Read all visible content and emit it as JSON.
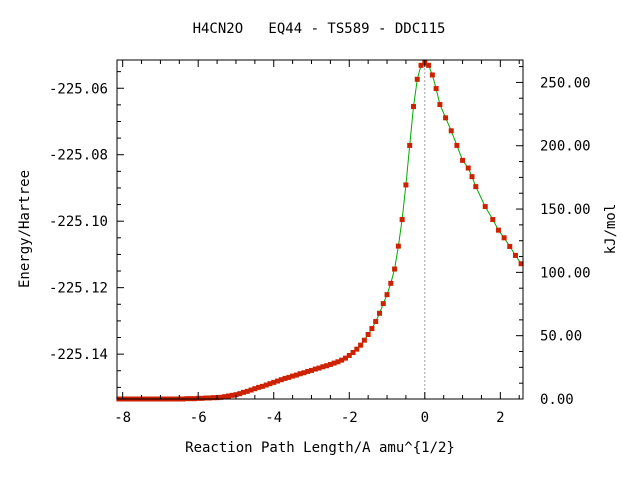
{
  "colors": {
    "line": "#00aa00",
    "marker": "#cc2200",
    "ts_line": "#a0a0a0",
    "axis": "#000000"
  },
  "chart_data": {
    "type": "line",
    "title": "H4CN2O   EQ44 - TS589 - DDC115",
    "xlabel": "Reaction Path Length/A amu^{1/2}",
    "ylabel": "Energy/Hartree",
    "y2label": "kJ/mol",
    "xlim": [
      -8.15,
      2.6
    ],
    "ylim": [
      -225.1535,
      -225.0515
    ],
    "y2lim": [
      0,
      267.7
    ],
    "x_ticks": [
      -8,
      -6,
      -4,
      -2,
      0,
      2
    ],
    "x_tick_labels": [
      "-8",
      "-6",
      "-4",
      "-2",
      "0",
      "2"
    ],
    "y_ticks": [
      -225.06,
      -225.08,
      -225.1,
      -225.12,
      -225.14
    ],
    "y_tick_labels": [
      "-225.06",
      "-225.08",
      "-225.10",
      "-225.12",
      "-225.14"
    ],
    "y2_ticks": [
      0,
      50,
      100,
      150,
      200,
      250
    ],
    "y2_tick_labels": [
      "0.00",
      "50.00",
      "100.00",
      "150.00",
      "200.00",
      "250.00"
    ],
    "ts_marker_x": 0,
    "grid": false,
    "series": [
      {
        "points": [
          [
            -8.1,
            -225.1535
          ],
          [
            -8.0,
            -225.1535
          ],
          [
            -7.9,
            -225.1535
          ],
          [
            -7.8,
            -225.1535
          ],
          [
            -7.7,
            -225.1535
          ],
          [
            -7.6,
            -225.1535
          ],
          [
            -7.5,
            -225.1535
          ],
          [
            -7.4,
            -225.1535
          ],
          [
            -7.3,
            -225.1535
          ],
          [
            -7.2,
            -225.1535
          ],
          [
            -7.1,
            -225.1535
          ],
          [
            -7.0,
            -225.1535
          ],
          [
            -6.9,
            -225.1535
          ],
          [
            -6.8,
            -225.1535
          ],
          [
            -6.7,
            -225.1535
          ],
          [
            -6.6,
            -225.1535
          ],
          [
            -6.5,
            -225.1535
          ],
          [
            -6.4,
            -225.1535
          ],
          [
            -6.3,
            -225.1534
          ],
          [
            -6.2,
            -225.1534
          ],
          [
            -6.1,
            -225.1534
          ],
          [
            -6.0,
            -225.1533
          ],
          [
            -5.9,
            -225.1533
          ],
          [
            -5.8,
            -225.1532
          ],
          [
            -5.7,
            -225.1532
          ],
          [
            -5.6,
            -225.1531
          ],
          [
            -5.5,
            -225.1531
          ],
          [
            -5.4,
            -225.153
          ],
          [
            -5.3,
            -225.1528
          ],
          [
            -5.2,
            -225.1526
          ],
          [
            -5.1,
            -225.1524
          ],
          [
            -5.0,
            -225.1522
          ],
          [
            -4.9,
            -225.1519
          ],
          [
            -4.8,
            -225.1515
          ],
          [
            -4.7,
            -225.1512
          ],
          [
            -4.6,
            -225.1508
          ],
          [
            -4.5,
            -225.1504
          ],
          [
            -4.4,
            -225.15
          ],
          [
            -4.3,
            -225.1497
          ],
          [
            -4.2,
            -225.1493
          ],
          [
            -4.1,
            -225.1489
          ],
          [
            -4.0,
            -225.1485
          ],
          [
            -3.9,
            -225.1481
          ],
          [
            -3.8,
            -225.1477
          ],
          [
            -3.7,
            -225.1473
          ],
          [
            -3.6,
            -225.147
          ],
          [
            -3.5,
            -225.1466
          ],
          [
            -3.4,
            -225.1463
          ],
          [
            -3.3,
            -225.1459
          ],
          [
            -3.2,
            -225.1456
          ],
          [
            -3.1,
            -225.1452
          ],
          [
            -3.0,
            -225.1449
          ],
          [
            -2.9,
            -225.1445
          ],
          [
            -2.8,
            -225.1442
          ],
          [
            -2.7,
            -225.1438
          ],
          [
            -2.6,
            -225.1435
          ],
          [
            -2.5,
            -225.1431
          ],
          [
            -2.4,
            -225.1427
          ],
          [
            -2.3,
            -225.1423
          ],
          [
            -2.2,
            -225.1418
          ],
          [
            -2.1,
            -225.1412
          ],
          [
            -2.0,
            -225.1404
          ],
          [
            -1.9,
            -225.1395
          ],
          [
            -1.8,
            -225.1385
          ],
          [
            -1.7,
            -225.1373
          ],
          [
            -1.6,
            -225.1358
          ],
          [
            -1.5,
            -225.1341
          ],
          [
            -1.4,
            -225.1323
          ],
          [
            -1.3,
            -225.1302
          ],
          [
            -1.2,
            -225.1277
          ],
          [
            -1.1,
            -225.1248
          ],
          [
            -1.0,
            -225.1221
          ],
          [
            -0.9,
            -225.1187
          ],
          [
            -0.8,
            -225.1144
          ],
          [
            -0.7,
            -225.1075
          ],
          [
            -0.6,
            -225.0995
          ],
          [
            -0.5,
            -225.0891
          ],
          [
            -0.4,
            -225.0772
          ],
          [
            -0.3,
            -225.0655
          ],
          [
            -0.2,
            -225.0573
          ],
          [
            -0.1,
            -225.0531
          ],
          [
            0.0,
            -225.0524
          ],
          [
            0.1,
            -225.0531
          ],
          [
            0.2,
            -225.056
          ],
          [
            0.3,
            -225.0601
          ],
          [
            0.4,
            -225.0649
          ],
          [
            0.55,
            -225.0689
          ],
          [
            0.7,
            -225.0728
          ],
          [
            0.85,
            -225.0772
          ],
          [
            1.0,
            -225.0817
          ],
          [
            1.15,
            -225.084
          ],
          [
            1.25,
            -225.0866
          ],
          [
            1.35,
            -225.0896
          ],
          [
            1.6,
            -225.0956
          ],
          [
            1.8,
            -225.0995
          ],
          [
            1.95,
            -225.1027
          ],
          [
            2.1,
            -225.105
          ],
          [
            2.25,
            -225.1076
          ],
          [
            2.4,
            -225.1103
          ],
          [
            2.55,
            -225.1128
          ]
        ]
      }
    ]
  }
}
